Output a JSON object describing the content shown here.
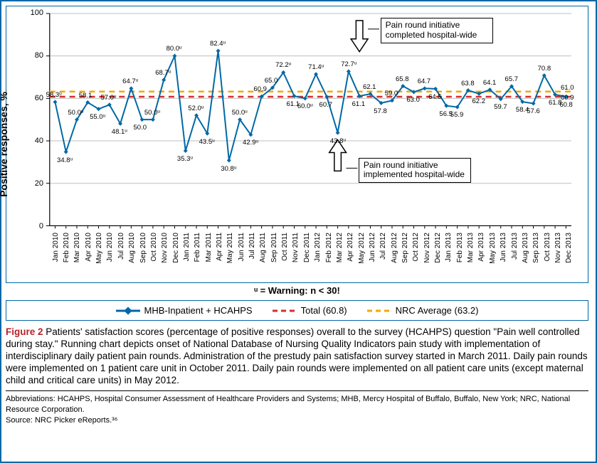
{
  "figure": {
    "type": "line",
    "y_axis_label": "Positive responses, %",
    "ylim": [
      0,
      100
    ],
    "ytick_step": 20,
    "yticks": [
      0,
      20,
      40,
      60,
      80,
      100
    ],
    "background_color": "#ffffff",
    "grid_color": "#bfbfbf",
    "series_color": "#0068a6",
    "marker": "diamond",
    "marker_size": 6,
    "line_width": 2,
    "total_line": {
      "value": 60.8,
      "color": "#d32f2f",
      "dash": "8 6",
      "width": 2.5
    },
    "nrc_line": {
      "value": 63.2,
      "color": "#f2a900",
      "dash": "8 6",
      "width": 2.5
    },
    "categories": [
      "Jan 2010",
      "Feb 2010",
      "Mar 2010",
      "Apr 2010",
      "May 2010",
      "Jun 2010",
      "Jul 2010",
      "Aug 2010",
      "Sep 2010",
      "Oct 2010",
      "Nov 2010",
      "Dec 2010",
      "Jan 2011",
      "Feb 2011",
      "Mar 2011",
      "Apr 2011",
      "May 2011",
      "Jun 2011",
      "Jul 2011",
      "Aug 2011",
      "Sep 2011",
      "Oct 2011",
      "Nov 2011",
      "Dec 2011",
      "Jan 2012",
      "Feb 2012",
      "Mar 2012",
      "Apr 2012",
      "May 2012",
      "Jun 2012",
      "Jul 2012",
      "Aug 2012",
      "Sep 2012",
      "Oct 2012",
      "Nov 2012",
      "Dec 2012",
      "Jan 2013",
      "Feb 2013",
      "Mar 2013",
      "Apr 2013",
      "May 2013",
      "Jun 2013",
      "Jul 2013",
      "Aug 2013",
      "Sep 2013",
      "Oct 2013",
      "Nov 2013",
      "Dec 2013"
    ],
    "values": [
      58.3,
      34.8,
      50.0,
      58.1,
      55.0,
      57.0,
      48.1,
      64.7,
      50.0,
      50.0,
      68.7,
      80.0,
      35.3,
      52.0,
      43.5,
      82.4,
      30.8,
      50.0,
      42.9,
      60.9,
      65.0,
      72.2,
      61.1,
      60.0,
      71.4,
      60.7,
      43.8,
      72.7,
      61.1,
      62.1,
      57.8,
      59.0,
      65.8,
      63.0,
      64.7,
      64.5,
      56.5,
      55.9,
      63.8,
      62.2,
      64.1,
      59.7,
      65.7,
      58.4,
      57.6,
      70.8,
      61.8,
      60.8
    ],
    "mu_flags": [
      true,
      true,
      true,
      false,
      true,
      true,
      true,
      true,
      false,
      true,
      true,
      true,
      true,
      true,
      true,
      true,
      true,
      true,
      true,
      false,
      false,
      true,
      false,
      true,
      true,
      false,
      true,
      true,
      false,
      false,
      false,
      false,
      false,
      false,
      false,
      false,
      false,
      false,
      false,
      false,
      false,
      false,
      false,
      false,
      false,
      false,
      false,
      false
    ],
    "extra_end_labels": [
      "61.0",
      "60.9"
    ],
    "annotations": {
      "completed": "Pain round initiative completed hospital-wide",
      "implemented": "Pain round initiative implemented hospital-wide"
    },
    "footnote": "ᵘ = Warning: n < 30!"
  },
  "legend": {
    "items": [
      {
        "label": "MHB-Inpatient + HCAHPS",
        "style": "line-solid",
        "color": "#0068a6"
      },
      {
        "label": "Total (60.8)",
        "style": "line-dashed",
        "color": "#d32f2f"
      },
      {
        "label": "NRC Average (63.2)",
        "style": "line-dashed",
        "color": "#f2a900"
      }
    ]
  },
  "caption": {
    "fig_label": "Figure 2",
    "text": "Patients' satisfaction scores (percentage of positive responses) overall to the survey (HCAHPS) question \"Pain well controlled during stay.\" Running chart depicts onset of National Database of Nursing Quality Indicators pain study with implementation of interdisciplinary daily patient pain rounds. Administration of the prestudy pain satisfaction survey started in March 2011. Daily pain rounds were implemented on 1 patient care unit in October 2011. Daily pain rounds were implemented on all patient care units (except maternal child and critical care units) in May 2012."
  },
  "abbrev": {
    "text": "Abbreviations: HCAHPS, Hospital Consumer Assessment of Healthcare Providers and Systems; MHB, Mercy Hospital of Buffalo, Buffalo, New York; NRC, National Resource Corporation.",
    "source": "Source: NRC Picker eReports.³⁶"
  }
}
